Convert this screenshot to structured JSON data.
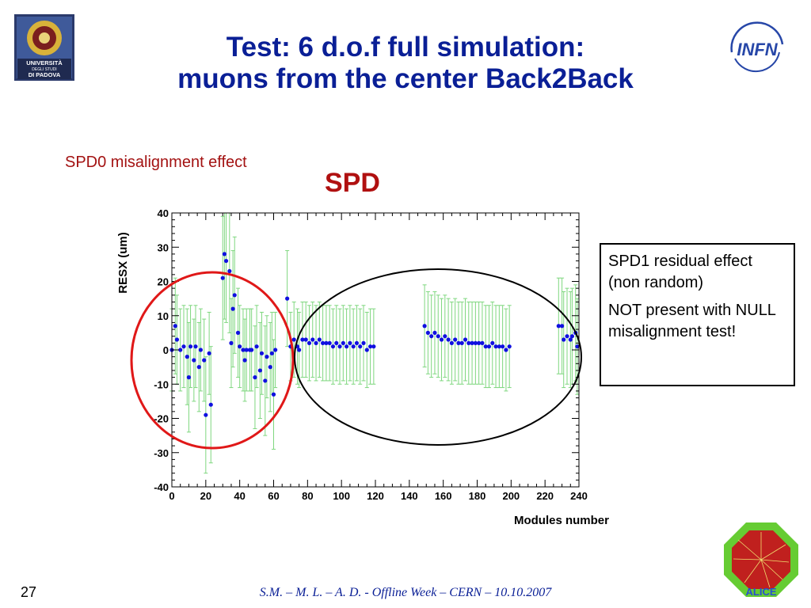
{
  "slide": {
    "title_line1": "Test: 6 d.o.f full simulation:",
    "title_line2": "muons from the center Back2Back",
    "annotation_left": "SPD0 misalignment effect",
    "note_line1": "SPD1 residual effect (non random)",
    "note_line2": "NOT present with NULL misalignment test!",
    "footer": "S.M. – M. L. – A. D.   - Offline Week – CERN – 10.10.2007",
    "page_number": "27",
    "logo_left_text1": "UNIVERSITÀ",
    "logo_left_text2": "DEGLI STUDI",
    "logo_left_text3": "DI PADOVA",
    "logo_right_text": "INFN",
    "logo_bottom_text": "ALICE"
  },
  "colors": {
    "title": "#0a1f96",
    "annotation": "#a31212",
    "chart_title": "#b01010",
    "marker": "#1010e0",
    "error_bar": "#7fd77f",
    "red_ellipse": "#e01818",
    "black_ellipse": "#000000"
  },
  "chart_data": {
    "type": "scatter",
    "title": "SPD",
    "xlabel": "Modules number",
    "ylabel": "RESX (um)",
    "xlim": [
      0,
      240
    ],
    "ylim": [
      -40,
      40
    ],
    "xticks": [
      0,
      20,
      40,
      60,
      80,
      100,
      120,
      140,
      160,
      180,
      200,
      220,
      240
    ],
    "yticks": [
      40,
      30,
      20,
      10,
      0,
      -10,
      -20,
      -30,
      -40
    ],
    "grid": false,
    "error_bars": true,
    "series": [
      {
        "points": [
          {
            "x": 0,
            "y": 0,
            "err": 12
          },
          {
            "x": 2,
            "y": 7,
            "err": 14
          },
          {
            "x": 3,
            "y": 3,
            "err": 13
          },
          {
            "x": 5,
            "y": 0,
            "err": 12
          },
          {
            "x": 7,
            "y": 1,
            "err": 12
          },
          {
            "x": 9,
            "y": -2,
            "err": 14
          },
          {
            "x": 10,
            "y": -8,
            "err": 16
          },
          {
            "x": 11,
            "y": 1,
            "err": 12
          },
          {
            "x": 13,
            "y": -3,
            "err": 12
          },
          {
            "x": 14,
            "y": 1,
            "err": 12
          },
          {
            "x": 16,
            "y": -5,
            "err": 13
          },
          {
            "x": 17,
            "y": 0,
            "err": 12
          },
          {
            "x": 19,
            "y": -3,
            "err": 12
          },
          {
            "x": 20,
            "y": -19,
            "err": 17
          },
          {
            "x": 22,
            "y": -1,
            "err": 12
          },
          {
            "x": 23,
            "y": -16,
            "err": 17
          },
          {
            "x": 30,
            "y": 21,
            "err": 18
          },
          {
            "x": 31,
            "y": 28,
            "err": 19
          },
          {
            "x": 32,
            "y": 26,
            "err": 18
          },
          {
            "x": 34,
            "y": 23,
            "err": 18
          },
          {
            "x": 35,
            "y": 2,
            "err": 13
          },
          {
            "x": 36,
            "y": 12,
            "err": 17
          },
          {
            "x": 37,
            "y": 16,
            "err": 17
          },
          {
            "x": 39,
            "y": 5,
            "err": 13
          },
          {
            "x": 40,
            "y": 1,
            "err": 12
          },
          {
            "x": 42,
            "y": 0,
            "err": 12
          },
          {
            "x": 43,
            "y": -3,
            "err": 12
          },
          {
            "x": 44,
            "y": 0,
            "err": 12
          },
          {
            "x": 46,
            "y": 0,
            "err": 12
          },
          {
            "x": 47,
            "y": 0,
            "err": 12
          },
          {
            "x": 49,
            "y": -8,
            "err": 15
          },
          {
            "x": 50,
            "y": 1,
            "err": 12
          },
          {
            "x": 52,
            "y": -6,
            "err": 14
          },
          {
            "x": 53,
            "y": -1,
            "err": 12
          },
          {
            "x": 55,
            "y": -9,
            "err": 16
          },
          {
            "x": 56,
            "y": -2,
            "err": 12
          },
          {
            "x": 58,
            "y": -5,
            "err": 13
          },
          {
            "x": 59,
            "y": -1,
            "err": 12
          },
          {
            "x": 60,
            "y": -13,
            "err": 16
          },
          {
            "x": 61,
            "y": 0,
            "err": 11
          },
          {
            "x": 68,
            "y": 15,
            "err": 14
          },
          {
            "x": 70,
            "y": 1,
            "err": 10
          },
          {
            "x": 72,
            "y": 3,
            "err": 11
          },
          {
            "x": 74,
            "y": 1,
            "err": 11
          },
          {
            "x": 75,
            "y": 0,
            "err": 11
          },
          {
            "x": 77,
            "y": 3,
            "err": 11
          },
          {
            "x": 79,
            "y": 3,
            "err": 11
          },
          {
            "x": 81,
            "y": 2,
            "err": 11
          },
          {
            "x": 83,
            "y": 3,
            "err": 11
          },
          {
            "x": 85,
            "y": 2,
            "err": 11
          },
          {
            "x": 87,
            "y": 3,
            "err": 11
          },
          {
            "x": 89,
            "y": 2,
            "err": 11
          },
          {
            "x": 91,
            "y": 2,
            "err": 11
          },
          {
            "x": 93,
            "y": 2,
            "err": 11
          },
          {
            "x": 95,
            "y": 1,
            "err": 11
          },
          {
            "x": 97,
            "y": 2,
            "err": 11
          },
          {
            "x": 99,
            "y": 1,
            "err": 11
          },
          {
            "x": 101,
            "y": 2,
            "err": 11
          },
          {
            "x": 103,
            "y": 1,
            "err": 11
          },
          {
            "x": 105,
            "y": 2,
            "err": 11
          },
          {
            "x": 107,
            "y": 1,
            "err": 11
          },
          {
            "x": 109,
            "y": 2,
            "err": 11
          },
          {
            "x": 111,
            "y": 1,
            "err": 11
          },
          {
            "x": 113,
            "y": 2,
            "err": 11
          },
          {
            "x": 115,
            "y": 0,
            "err": 11
          },
          {
            "x": 117,
            "y": 1,
            "err": 11
          },
          {
            "x": 119,
            "y": 1,
            "err": 11
          },
          {
            "x": 149,
            "y": 7,
            "err": 12
          },
          {
            "x": 151,
            "y": 5,
            "err": 12
          },
          {
            "x": 153,
            "y": 4,
            "err": 12
          },
          {
            "x": 155,
            "y": 5,
            "err": 12
          },
          {
            "x": 157,
            "y": 4,
            "err": 12
          },
          {
            "x": 159,
            "y": 3,
            "err": 12
          },
          {
            "x": 161,
            "y": 4,
            "err": 12
          },
          {
            "x": 163,
            "y": 3,
            "err": 12
          },
          {
            "x": 165,
            "y": 2,
            "err": 12
          },
          {
            "x": 167,
            "y": 3,
            "err": 12
          },
          {
            "x": 169,
            "y": 2,
            "err": 12
          },
          {
            "x": 171,
            "y": 2,
            "err": 12
          },
          {
            "x": 173,
            "y": 3,
            "err": 12
          },
          {
            "x": 175,
            "y": 2,
            "err": 12
          },
          {
            "x": 177,
            "y": 2,
            "err": 12
          },
          {
            "x": 179,
            "y": 2,
            "err": 12
          },
          {
            "x": 181,
            "y": 2,
            "err": 12
          },
          {
            "x": 183,
            "y": 2,
            "err": 12
          },
          {
            "x": 185,
            "y": 1,
            "err": 12
          },
          {
            "x": 187,
            "y": 1,
            "err": 12
          },
          {
            "x": 189,
            "y": 2,
            "err": 12
          },
          {
            "x": 191,
            "y": 1,
            "err": 12
          },
          {
            "x": 193,
            "y": 1,
            "err": 12
          },
          {
            "x": 195,
            "y": 1,
            "err": 12
          },
          {
            "x": 197,
            "y": 0,
            "err": 12
          },
          {
            "x": 199,
            "y": 1,
            "err": 12
          },
          {
            "x": 228,
            "y": 7,
            "err": 14
          },
          {
            "x": 230,
            "y": 7,
            "err": 14
          },
          {
            "x": 231,
            "y": 3,
            "err": 14
          },
          {
            "x": 233,
            "y": 4,
            "err": 14
          },
          {
            "x": 235,
            "y": 3,
            "err": 14
          },
          {
            "x": 236,
            "y": 4,
            "err": 14
          },
          {
            "x": 238,
            "y": 5,
            "err": 14
          },
          {
            "x": 239,
            "y": 1,
            "err": 14
          }
        ]
      }
    ]
  }
}
